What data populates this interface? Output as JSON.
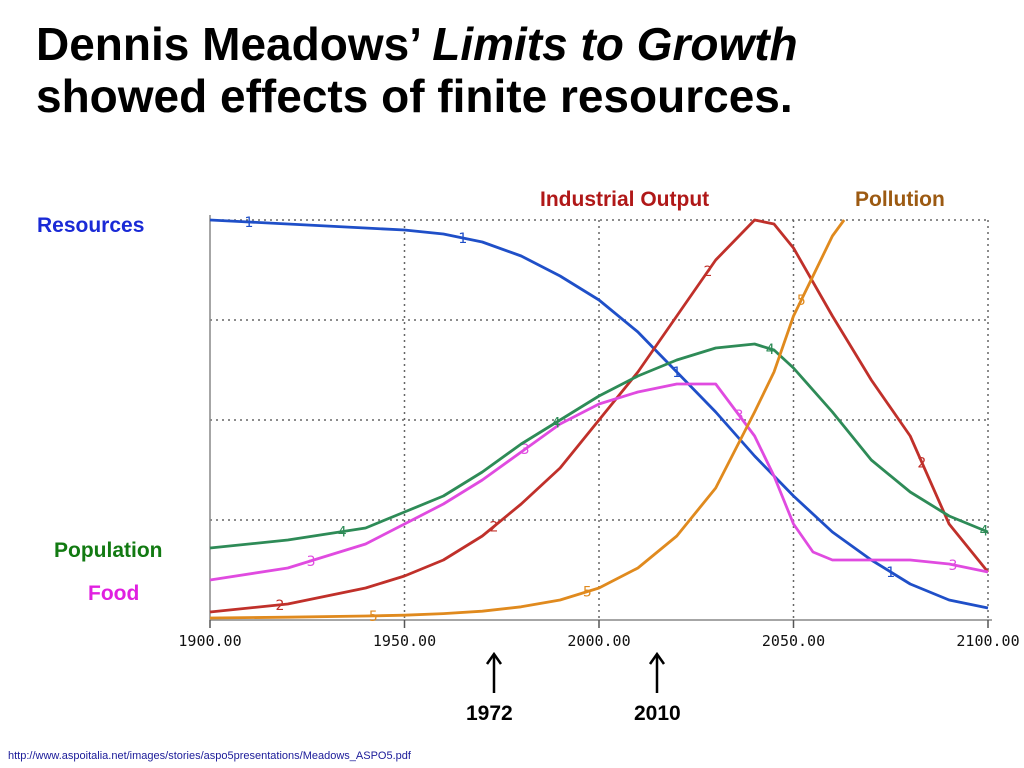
{
  "title": {
    "line1_plain": "Dennis Meadows’ ",
    "line1_italic": "Limits to Growth",
    "line2": "showed effects of finite resources."
  },
  "labels": {
    "resources": "Resources",
    "industrial_output": "Industrial Output",
    "pollution": "Pollution",
    "population": "Population",
    "food": "Food"
  },
  "markers": [
    {
      "year_label": "1972",
      "x": 1972
    },
    {
      "year_label": "2010",
      "x": 2010
    }
  ],
  "source_url": "http://www.aspoitalia.net/images/stories/aspo5presentations/Meadows_ASPO5.pdf",
  "chart_data": {
    "type": "line",
    "x_ticks": [
      "1900.00",
      "1950.00",
      "2000.00",
      "2050.00",
      "2100.00"
    ],
    "xlim": [
      1900,
      2100
    ],
    "ylim": [
      0,
      1
    ],
    "grid": true,
    "series": [
      {
        "name": "Resources",
        "marker": "1",
        "color": "#1f4fc8",
        "x": [
          1900,
          1910,
          1930,
          1950,
          1960,
          1970,
          1980,
          1990,
          2000,
          2010,
          2015,
          2020,
          2030,
          2040,
          2050,
          2060,
          2070,
          2080,
          2090,
          2100
        ],
        "y": [
          1.0,
          0.995,
          0.985,
          0.975,
          0.965,
          0.945,
          0.91,
          0.86,
          0.8,
          0.72,
          0.67,
          0.62,
          0.52,
          0.41,
          0.31,
          0.22,
          0.15,
          0.09,
          0.05,
          0.03
        ]
      },
      {
        "name": "Industrial Output",
        "marker": "2",
        "color": "#c0302a",
        "x": [
          1900,
          1920,
          1940,
          1950,
          1960,
          1970,
          1980,
          1990,
          2000,
          2010,
          2020,
          2030,
          2040,
          2045,
          2050,
          2060,
          2070,
          2080,
          2090,
          2100
        ],
        "y": [
          0.02,
          0.04,
          0.08,
          0.11,
          0.15,
          0.21,
          0.29,
          0.38,
          0.5,
          0.62,
          0.76,
          0.9,
          1.0,
          0.99,
          0.93,
          0.76,
          0.6,
          0.46,
          0.24,
          0.12
        ]
      },
      {
        "name": "Food",
        "marker": "3",
        "color": "#e04be0",
        "x": [
          1900,
          1920,
          1940,
          1950,
          1960,
          1970,
          1980,
          1990,
          2000,
          2010,
          2020,
          2030,
          2040,
          2045,
          2050,
          2055,
          2060,
          2070,
          2080,
          2090,
          2100
        ],
        "y": [
          0.1,
          0.13,
          0.19,
          0.24,
          0.29,
          0.35,
          0.42,
          0.49,
          0.54,
          0.57,
          0.59,
          0.59,
          0.46,
          0.36,
          0.24,
          0.17,
          0.15,
          0.15,
          0.15,
          0.14,
          0.12
        ]
      },
      {
        "name": "Population",
        "marker": "4",
        "color": "#2e8b57",
        "x": [
          1900,
          1920,
          1940,
          1950,
          1960,
          1970,
          1980,
          1990,
          2000,
          2010,
          2020,
          2030,
          2040,
          2045,
          2050,
          2060,
          2070,
          2080,
          2090,
          2100
        ],
        "y": [
          0.18,
          0.2,
          0.23,
          0.27,
          0.31,
          0.37,
          0.44,
          0.5,
          0.56,
          0.61,
          0.65,
          0.68,
          0.69,
          0.675,
          0.63,
          0.52,
          0.4,
          0.32,
          0.26,
          0.22
        ]
      },
      {
        "name": "Pollution",
        "marker": "5",
        "color": "#e08a1e",
        "x": [
          1900,
          1920,
          1940,
          1950,
          1960,
          1970,
          1980,
          1990,
          2000,
          2010,
          2020,
          2030,
          2040,
          2045,
          2050,
          2055,
          2060,
          2063
        ],
        "y": [
          0.005,
          0.007,
          0.01,
          0.012,
          0.016,
          0.022,
          0.033,
          0.05,
          0.08,
          0.13,
          0.21,
          0.33,
          0.52,
          0.62,
          0.76,
          0.86,
          0.96,
          1.0
        ]
      }
    ]
  },
  "colors": {
    "resources": "#1a2ad6",
    "industrial_output": "#b01818",
    "pollution": "#9c5a12",
    "population": "#127a12",
    "food": "#e020e0"
  }
}
